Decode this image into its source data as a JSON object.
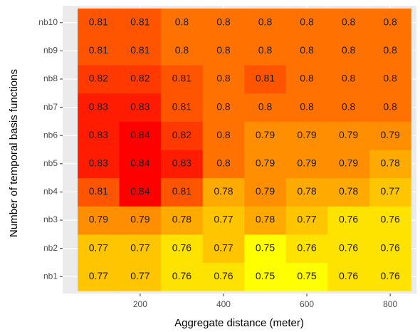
{
  "chart_data": {
    "type": "heatmap",
    "x_label": "Aggregate distance (meter)",
    "y_label": "Number of temporal basis functions",
    "x": [
      100,
      200,
      300,
      400,
      500,
      600,
      700,
      800
    ],
    "y_categories": [
      "nb1",
      "nb2",
      "nb3",
      "nb4",
      "nb5",
      "nb6",
      "nb7",
      "nb8",
      "nb9",
      "nb10"
    ],
    "values": [
      [
        0.77,
        0.77,
        0.76,
        0.76,
        0.75,
        0.75,
        0.76,
        0.76
      ],
      [
        0.77,
        0.77,
        0.76,
        0.77,
        0.75,
        0.76,
        0.76,
        0.76
      ],
      [
        0.79,
        0.79,
        0.78,
        0.77,
        0.78,
        0.77,
        0.76,
        0.76
      ],
      [
        0.81,
        0.84,
        0.81,
        0.78,
        0.79,
        0.78,
        0.78,
        0.77
      ],
      [
        0.83,
        0.84,
        0.83,
        0.8,
        0.79,
        0.79,
        0.79,
        0.78
      ],
      [
        0.83,
        0.84,
        0.82,
        0.8,
        0.79,
        0.79,
        0.79,
        0.79
      ],
      [
        0.83,
        0.83,
        0.81,
        0.8,
        0.8,
        0.8,
        0.8,
        0.8
      ],
      [
        0.82,
        0.82,
        0.81,
        0.8,
        0.81,
        0.8,
        0.8,
        0.8
      ],
      [
        0.81,
        0.81,
        0.8,
        0.8,
        0.8,
        0.8,
        0.8,
        0.8
      ],
      [
        0.81,
        0.81,
        0.8,
        0.8,
        0.8,
        0.8,
        0.8,
        0.8
      ]
    ],
    "xlim": [
      14,
      863
    ],
    "xticks": [
      200,
      400,
      600,
      800
    ],
    "grid": true,
    "color_low": "#ffff00",
    "color_high": "#ff0000"
  }
}
